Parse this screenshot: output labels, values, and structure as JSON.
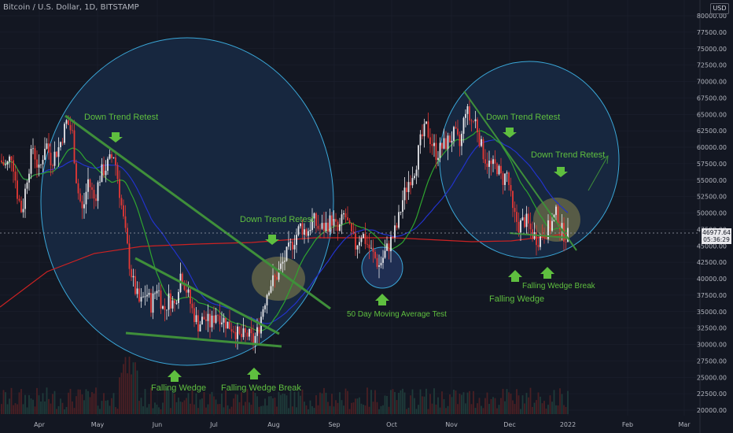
{
  "header": {
    "title": "Bitcoin / U.S. Dollar, 1D, BITSTAMP"
  },
  "currency": "USD",
  "price_label": {
    "price": "46977.64",
    "countdown": "05:36:29"
  },
  "colors": {
    "background": "#131722",
    "grid": "#1e2230",
    "up": "#e8e8ec",
    "down": "#e53935",
    "ma50": "#2fa52f",
    "ma100": "#2233cc",
    "ma200": "#cc2222",
    "circle_fill": "#1a2b45",
    "circle_stroke": "#3aa7d8",
    "annotation": "#5fbf3f",
    "highlight": "#8a8a5a"
  },
  "chart_data": {
    "type": "candlestick",
    "title": "Bitcoin / U.S. Dollar, 1D, BITSTAMP",
    "y_axis": {
      "ticks": [
        "80000.00",
        "77500.00",
        "75000.00",
        "72500.00",
        "70000.00",
        "67500.00",
        "65000.00",
        "62500.00",
        "60000.00",
        "57500.00",
        "55000.00",
        "52500.00",
        "50000.00",
        "47500.00",
        "45000.00",
        "42500.00",
        "40000.00",
        "37500.00",
        "35000.00",
        "32500.00",
        "30000.00",
        "27500.00",
        "25000.00",
        "22500.00",
        "20000.00"
      ],
      "range": [
        20000,
        81000
      ]
    },
    "x_axis": {
      "ticks": [
        "Apr",
        "May",
        "Jun",
        "Jul",
        "Aug",
        "Sep",
        "Oct",
        "Nov",
        "Dec",
        "2022",
        "Feb",
        "Mar"
      ]
    },
    "price_path": [
      [
        0,
        58000
      ],
      [
        8,
        57000
      ],
      [
        15,
        59000
      ],
      [
        22,
        53000
      ],
      [
        28,
        50000
      ],
      [
        35,
        56000
      ],
      [
        42,
        60000
      ],
      [
        50,
        56000
      ],
      [
        58,
        61000
      ],
      [
        65,
        58000
      ],
      [
        75,
        60000
      ],
      [
        85,
        64000
      ],
      [
        92,
        62000
      ],
      [
        98,
        54000
      ],
      [
        105,
        50000
      ],
      [
        112,
        55000
      ],
      [
        120,
        52000
      ],
      [
        128,
        56000
      ],
      [
        135,
        57000
      ],
      [
        145,
        59000
      ],
      [
        150,
        55000
      ],
      [
        158,
        48000
      ],
      [
        165,
        42000
      ],
      [
        170,
        39000
      ],
      [
        178,
        36000
      ],
      [
        186,
        38000
      ],
      [
        192,
        36000
      ],
      [
        200,
        39000
      ],
      [
        208,
        35000
      ],
      [
        215,
        37000
      ],
      [
        222,
        36000
      ],
      [
        230,
        41000
      ],
      [
        238,
        38000
      ],
      [
        245,
        35000
      ],
      [
        252,
        33000
      ],
      [
        260,
        34000
      ],
      [
        268,
        33000
      ],
      [
        275,
        35000
      ],
      [
        282,
        34000
      ],
      [
        290,
        33000
      ],
      [
        297,
        32500
      ],
      [
        305,
        31000
      ],
      [
        315,
        31500
      ],
      [
        322,
        30500
      ],
      [
        328,
        32000
      ],
      [
        335,
        36000
      ],
      [
        342,
        39000
      ],
      [
        350,
        40000
      ],
      [
        358,
        42000
      ],
      [
        366,
        44000
      ],
      [
        374,
        46000
      ],
      [
        382,
        48000
      ],
      [
        390,
        47000
      ],
      [
        398,
        49000
      ],
      [
        406,
        47500
      ],
      [
        414,
        48000
      ],
      [
        422,
        49000
      ],
      [
        430,
        47000
      ],
      [
        438,
        50000
      ],
      [
        445,
        47000
      ],
      [
        452,
        45000
      ],
      [
        460,
        47000
      ],
      [
        468,
        45000
      ],
      [
        475,
        43500
      ],
      [
        482,
        42000
      ],
      [
        490,
        44000
      ],
      [
        498,
        46000
      ],
      [
        505,
        48000
      ],
      [
        512,
        52000
      ],
      [
        520,
        55000
      ],
      [
        528,
        57000
      ],
      [
        535,
        61000
      ],
      [
        542,
        63000
      ],
      [
        548,
        61000
      ],
      [
        555,
        59000
      ],
      [
        562,
        60000
      ],
      [
        570,
        61000
      ],
      [
        578,
        62000
      ],
      [
        585,
        60000
      ],
      [
        592,
        66000
      ],
      [
        598,
        64000
      ],
      [
        605,
        64000
      ],
      [
        612,
        60000
      ],
      [
        618,
        58000
      ],
      [
        625,
        57000
      ],
      [
        632,
        57000
      ],
      [
        638,
        55000
      ],
      [
        645,
        56000
      ],
      [
        652,
        50000
      ],
      [
        660,
        48000
      ],
      [
        668,
        49000
      ],
      [
        676,
        47000
      ],
      [
        684,
        46000
      ],
      [
        692,
        47000
      ],
      [
        700,
        48000
      ],
      [
        708,
        50000
      ],
      [
        715,
        47000
      ],
      [
        722,
        46500
      ]
    ],
    "moving_averages": [
      {
        "name": "50 Day Moving Average"
      }
    ],
    "annotations": {
      "down_trend_retest_1": "Down Trend Retest",
      "down_trend_retest_2": "Down Trend Retest",
      "down_trend_retest_3": "Down Trend Retest",
      "down_trend_retest_4": "Down Trend Retest",
      "falling_wedge_1": "Falling Wedge",
      "falling_wedge_break_1": "Falling Wedge Break",
      "ma50_test": "50 Day Moving Average Test",
      "falling_wedge_2": "Falling Wedge",
      "falling_wedge_break_2": "Falling Wedge Break"
    }
  }
}
